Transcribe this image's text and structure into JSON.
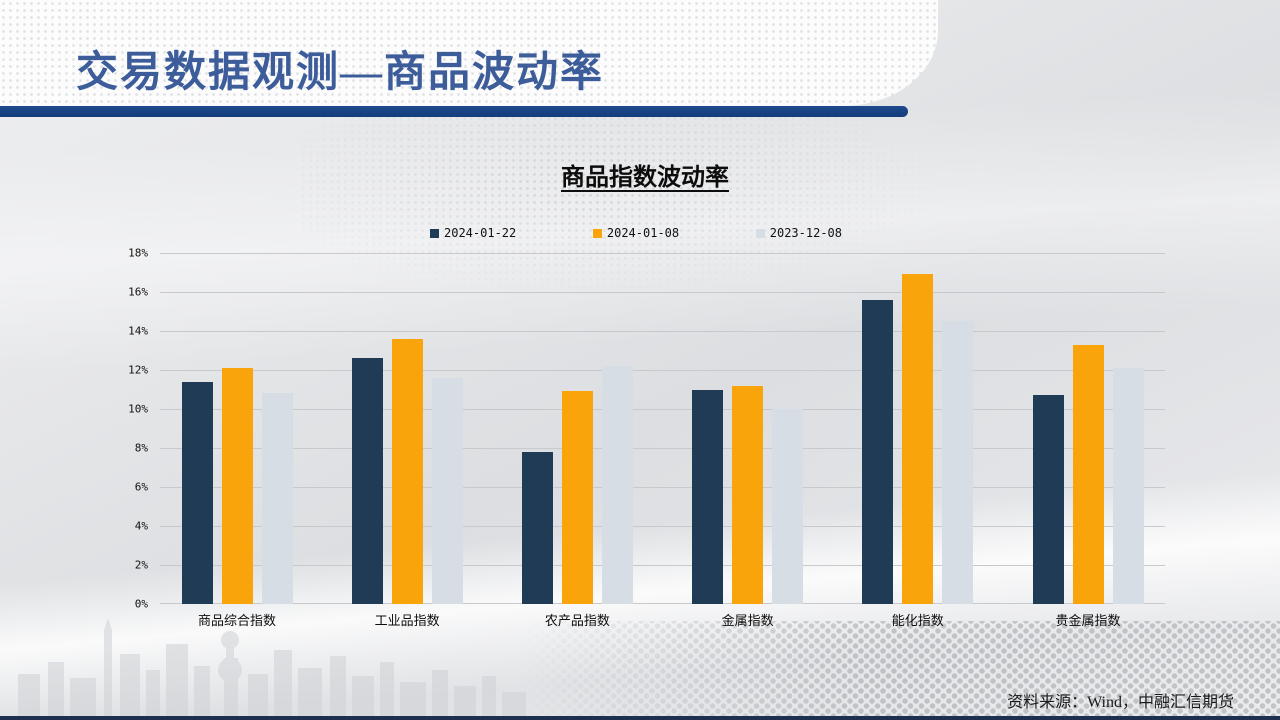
{
  "slide": {
    "title": "交易数据观测—商品波动率"
  },
  "chart_data": {
    "type": "bar",
    "title": "商品指数波动率",
    "categories": [
      "商品综合指数",
      "工业品指数",
      "农产品指数",
      "金属指数",
      "能化指数",
      "贵金属指数"
    ],
    "series": [
      {
        "name": "2024-01-22",
        "color": "#203b55",
        "values": [
          11.4,
          12.6,
          7.8,
          11.0,
          15.6,
          10.7
        ]
      },
      {
        "name": "2024-01-08",
        "color": "#f9a40a",
        "values": [
          12.1,
          13.6,
          10.9,
          11.2,
          16.9,
          13.3
        ]
      },
      {
        "name": "2023-12-08",
        "color": "#d7dde4",
        "values": [
          10.8,
          11.6,
          12.2,
          10.0,
          14.5,
          12.1
        ]
      }
    ],
    "xlabel": "",
    "ylabel": "",
    "ylim": [
      0,
      18
    ],
    "ytick_step": 2,
    "ytick_labels": [
      "0%",
      "2%",
      "4%",
      "6%",
      "8%",
      "10%",
      "12%",
      "14%",
      "16%",
      "18%"
    ],
    "grid": true,
    "legend_position": "top-center"
  },
  "footer": {
    "source": "资料来源：Wind，中融汇信期货"
  },
  "colors": {
    "title_text": "#3c5c9a",
    "header_rule": "#143c7c",
    "bottom_bar": "#1e3050",
    "gridline": "#c7c9cc",
    "background": "#e4e5e8"
  }
}
